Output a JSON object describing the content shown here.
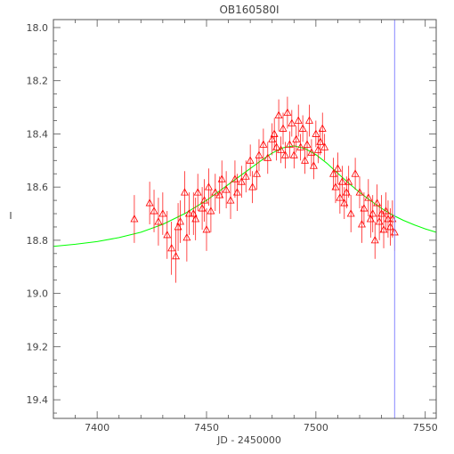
{
  "chart_data": {
    "type": "scatter",
    "title": "OB160580I",
    "xlabel": "JD - 2450000",
    "ylabel": "I",
    "xlim": [
      7380,
      7555
    ],
    "ylim": [
      19.47,
      17.97
    ],
    "y_inverted": true,
    "grid": false,
    "x_ticks": [
      7400,
      7450,
      7500,
      7550
    ],
    "y_ticks": [
      18.0,
      18.2,
      18.4,
      18.6,
      18.8,
      19.0,
      19.2,
      19.4
    ],
    "x_tick_labels": [
      "7400",
      "7450",
      "7500",
      "7550"
    ],
    "y_tick_labels": [
      "18.0",
      "18.2",
      "18.4",
      "18.6",
      "18.8",
      "19.0",
      "19.2",
      "19.4"
    ],
    "colors": {
      "points": "#ff0000",
      "model": "#00ff00",
      "marker_line": "#8888ff",
      "axes": "#555555"
    },
    "vertical_marker": {
      "x": 7536
    },
    "model_curve": {
      "color": "#00ff00",
      "x": [
        7380,
        7390,
        7400,
        7410,
        7420,
        7430,
        7440,
        7450,
        7460,
        7470,
        7475,
        7480,
        7485,
        7490,
        7495,
        7500,
        7505,
        7510,
        7515,
        7520,
        7525,
        7530,
        7535,
        7540,
        7545,
        7550,
        7555
      ],
      "y": [
        18.823,
        18.815,
        18.805,
        18.79,
        18.77,
        18.74,
        18.7,
        18.65,
        18.59,
        18.53,
        18.5,
        18.472,
        18.452,
        18.445,
        18.455,
        18.478,
        18.51,
        18.548,
        18.585,
        18.62,
        18.651,
        18.68,
        18.705,
        18.725,
        18.742,
        18.757,
        18.77
      ]
    },
    "series": [
      {
        "marker": "triangle",
        "color": "#ff0000",
        "x": [
          7417,
          7424,
          7426,
          7428,
          7430,
          7432,
          7434,
          7436,
          7437,
          7438,
          7440,
          7441,
          7442,
          7444,
          7445,
          7446,
          7448,
          7449,
          7450,
          7451,
          7452,
          7454,
          7456,
          7457,
          7459,
          7461,
          7463,
          7464,
          7466,
          7468,
          7470,
          7471,
          7473,
          7474,
          7476,
          7478,
          7480,
          7481,
          7482,
          7483,
          7484,
          7485,
          7486,
          7487,
          7488,
          7489,
          7490,
          7491,
          7492,
          7493,
          7494,
          7495,
          7496,
          7497,
          7498,
          7499,
          7500,
          7501,
          7502,
          7503,
          7504,
          7508,
          7509,
          7510,
          7511,
          7512,
          7513,
          7514,
          7515,
          7516,
          7518,
          7520,
          7521,
          7522,
          7524,
          7525,
          7526,
          7527,
          7528,
          7529,
          7530,
          7531,
          7532,
          7533,
          7534,
          7535,
          7536
        ],
        "y": [
          18.72,
          18.66,
          18.69,
          18.73,
          18.7,
          18.78,
          18.83,
          18.86,
          18.75,
          18.73,
          18.62,
          18.79,
          18.7,
          18.7,
          18.72,
          18.62,
          18.68,
          18.65,
          18.76,
          18.6,
          18.69,
          18.62,
          18.63,
          18.57,
          18.61,
          18.65,
          18.57,
          18.62,
          18.58,
          18.56,
          18.5,
          18.6,
          18.55,
          18.48,
          18.44,
          18.49,
          18.42,
          18.4,
          18.45,
          18.33,
          18.46,
          18.38,
          18.48,
          18.32,
          18.44,
          18.36,
          18.48,
          18.42,
          18.35,
          18.45,
          18.38,
          18.5,
          18.44,
          18.35,
          18.47,
          18.52,
          18.4,
          18.46,
          18.43,
          18.38,
          18.45,
          18.55,
          18.6,
          18.53,
          18.64,
          18.58,
          18.66,
          18.62,
          18.58,
          18.7,
          18.55,
          18.62,
          18.74,
          18.68,
          18.64,
          18.72,
          18.7,
          18.8,
          18.66,
          18.73,
          18.7,
          18.76,
          18.69,
          18.72,
          18.75,
          18.72,
          18.77
        ],
        "err": [
          0.09,
          0.08,
          0.08,
          0.09,
          0.08,
          0.09,
          0.1,
          0.1,
          0.09,
          0.08,
          0.08,
          0.09,
          0.08,
          0.08,
          0.08,
          0.07,
          0.08,
          0.08,
          0.08,
          0.07,
          0.08,
          0.07,
          0.07,
          0.07,
          0.07,
          0.07,
          0.07,
          0.07,
          0.06,
          0.06,
          0.06,
          0.06,
          0.06,
          0.06,
          0.06,
          0.06,
          0.06,
          0.06,
          0.05,
          0.06,
          0.05,
          0.06,
          0.05,
          0.06,
          0.05,
          0.05,
          0.05,
          0.05,
          0.06,
          0.05,
          0.05,
          0.05,
          0.05,
          0.06,
          0.05,
          0.05,
          0.05,
          0.05,
          0.05,
          0.06,
          0.05,
          0.06,
          0.06,
          0.06,
          0.06,
          0.06,
          0.06,
          0.06,
          0.06,
          0.07,
          0.06,
          0.06,
          0.07,
          0.06,
          0.07,
          0.07,
          0.07,
          0.07,
          0.07,
          0.07,
          0.07,
          0.07,
          0.07,
          0.07,
          0.07,
          0.07,
          0.07
        ]
      }
    ]
  }
}
